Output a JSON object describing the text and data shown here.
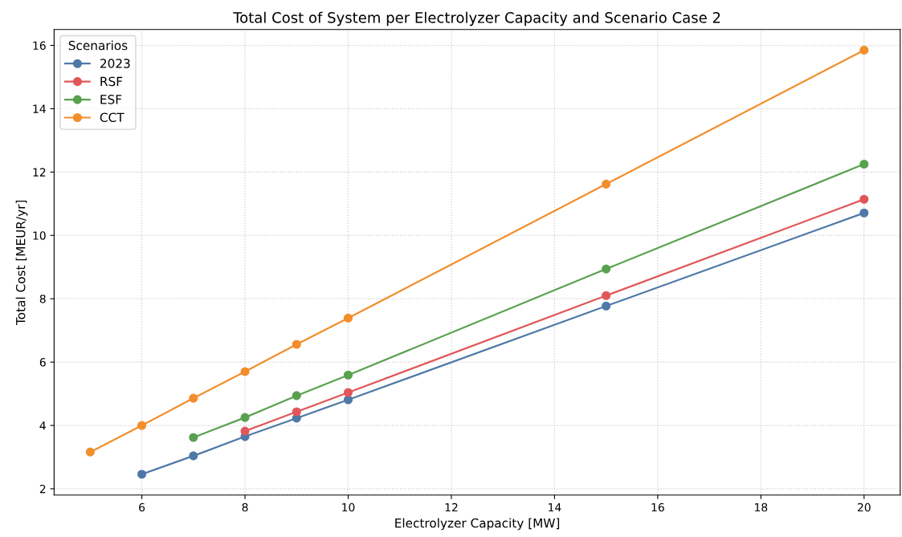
{
  "chart_data": {
    "type": "line",
    "title": "Total Cost of System per Electrolyzer Capacity and Scenario Case 2",
    "xlabel": "Electrolyzer Capacity [MW]",
    "ylabel": "Total Cost [MEUR/yr]",
    "legend_title": "Scenarios",
    "legend": "top left",
    "grid": true,
    "marker": "circle",
    "line_style": "solid",
    "xlim": [
      4.3,
      20.7
    ],
    "ylim": [
      1.8,
      16.5
    ],
    "xticks": [
      6,
      8,
      10,
      12,
      14,
      16,
      18,
      20
    ],
    "yticks": [
      2,
      4,
      6,
      8,
      10,
      12,
      14,
      16
    ],
    "series": [
      {
        "name": "2023",
        "color": "#4e79a7",
        "x": [
          6,
          7,
          8,
          9,
          10,
          15,
          20
        ],
        "values": [
          2.46,
          3.04,
          3.65,
          4.23,
          4.81,
          7.77,
          10.71
        ]
      },
      {
        "name": "RSF",
        "color": "#e15759",
        "x": [
          8,
          9,
          10,
          15,
          20
        ],
        "values": [
          3.82,
          4.43,
          5.04,
          8.1,
          11.14
        ]
      },
      {
        "name": "ESF",
        "color": "#59a14f",
        "x": [
          7,
          8,
          9,
          10,
          15,
          20
        ],
        "values": [
          3.62,
          4.25,
          4.94,
          5.59,
          8.94,
          12.25
        ]
      },
      {
        "name": "CCT",
        "color": "#f28e2b",
        "x": [
          5,
          6,
          7,
          8,
          9,
          10,
          15,
          20
        ],
        "values": [
          3.16,
          4.0,
          4.86,
          5.7,
          6.56,
          7.39,
          11.62,
          15.85
        ]
      }
    ]
  }
}
